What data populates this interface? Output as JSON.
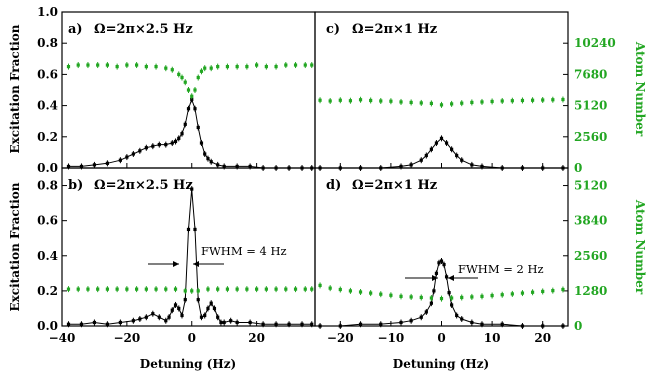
{
  "colors": {
    "excitation": "#000000",
    "atoms": "#22a622",
    "axis": "#000000"
  },
  "labels": {
    "ylabel_left": "Excitation Fraction",
    "ylabel_right": "Atom Number",
    "xlabel": "Detuning (Hz)"
  },
  "chart_data": [
    {
      "panel": "a",
      "type": "scatter",
      "label": "a)",
      "title": "Ω=2π×2.5 Hz",
      "xlim": [
        -40,
        38
      ],
      "ylim": [
        0,
        1.0
      ],
      "yticks": [
        "0.0",
        "0.2",
        "0.4",
        "0.6",
        "0.8",
        "1.0"
      ],
      "yticks_values": [
        0,
        0.2,
        0.4,
        0.6,
        0.8,
        1.0
      ],
      "series": [
        {
          "name": "excitation",
          "x": [
            -38,
            -34,
            -30,
            -26,
            -22,
            -20,
            -18,
            -16,
            -14,
            -12,
            -10,
            -8,
            -6,
            -5,
            -4,
            -3,
            -2,
            -1,
            0,
            1,
            2,
            3,
            4,
            5,
            6,
            8,
            10,
            14,
            18,
            22,
            26,
            30,
            34,
            37
          ],
          "y": [
            0.01,
            0.01,
            0.02,
            0.03,
            0.05,
            0.07,
            0.09,
            0.11,
            0.13,
            0.14,
            0.15,
            0.15,
            0.16,
            0.17,
            0.19,
            0.22,
            0.28,
            0.38,
            0.44,
            0.38,
            0.26,
            0.16,
            0.09,
            0.06,
            0.04,
            0.02,
            0.01,
            0.01,
            0.01,
            0.0,
            0.0,
            0.0,
            0.0,
            0.0
          ]
        },
        {
          "name": "atoms",
          "x": [
            -38,
            -35,
            -32,
            -29,
            -26,
            -23,
            -20,
            -17,
            -14,
            -11,
            -8,
            -6,
            -4,
            -3,
            -2,
            -1,
            0,
            1,
            2,
            3,
            4,
            6,
            8,
            11,
            14,
            17,
            20,
            23,
            26,
            29,
            32,
            35,
            37
          ],
          "y": [
            0.65,
            0.66,
            0.66,
            0.66,
            0.66,
            0.65,
            0.66,
            0.66,
            0.65,
            0.65,
            0.64,
            0.63,
            0.6,
            0.58,
            0.55,
            0.5,
            0.46,
            0.5,
            0.58,
            0.62,
            0.64,
            0.64,
            0.65,
            0.65,
            0.65,
            0.65,
            0.66,
            0.65,
            0.65,
            0.66,
            0.66,
            0.66,
            0.66
          ]
        }
      ]
    },
    {
      "panel": "b",
      "type": "scatter",
      "label": "b)",
      "title": "Ω=2π×2.5 Hz",
      "xlim": [
        -40,
        38
      ],
      "ylim": [
        0,
        0.9
      ],
      "yticks": [
        "0.0",
        "0.2",
        "0.4",
        "0.6",
        "0.8"
      ],
      "yticks_values": [
        0,
        0.2,
        0.4,
        0.6,
        0.8
      ],
      "xticks": [
        "−40",
        "−20",
        "0",
        "20"
      ],
      "xticks_values": [
        -40,
        -20,
        0,
        20
      ],
      "annotation": "FWHM = 4 Hz",
      "series": [
        {
          "name": "excitation",
          "x": [
            -38,
            -34,
            -30,
            -26,
            -22,
            -18,
            -16,
            -14,
            -12,
            -10,
            -8,
            -7,
            -6,
            -5,
            -4,
            -3,
            -2,
            -1,
            0,
            1,
            2,
            3,
            4,
            5,
            6,
            7,
            8,
            9,
            10,
            12,
            14,
            18,
            22,
            26,
            30,
            34,
            37
          ],
          "y": [
            0.01,
            0.01,
            0.02,
            0.01,
            0.02,
            0.03,
            0.04,
            0.05,
            0.07,
            0.05,
            0.03,
            0.05,
            0.09,
            0.12,
            0.1,
            0.06,
            0.15,
            0.55,
            0.78,
            0.55,
            0.15,
            0.05,
            0.06,
            0.1,
            0.13,
            0.1,
            0.05,
            0.02,
            0.02,
            0.03,
            0.02,
            0.02,
            0.01,
            0.01,
            0.01,
            0.01,
            0.01
          ]
        },
        {
          "name": "atoms",
          "x": [
            -38,
            -35,
            -32,
            -29,
            -26,
            -23,
            -20,
            -17,
            -14,
            -11,
            -8,
            -5,
            -2,
            0,
            2,
            5,
            8,
            11,
            14,
            17,
            20,
            23,
            26,
            29,
            32,
            35,
            37
          ],
          "y": [
            0.21,
            0.21,
            0.21,
            0.21,
            0.21,
            0.21,
            0.21,
            0.21,
            0.21,
            0.21,
            0.21,
            0.21,
            0.2,
            0.2,
            0.2,
            0.21,
            0.21,
            0.21,
            0.21,
            0.21,
            0.21,
            0.21,
            0.21,
            0.21,
            0.21,
            0.21,
            0.21
          ]
        }
      ]
    },
    {
      "panel": "c",
      "type": "scatter",
      "label": "c)",
      "title": "Ω=2π×1 Hz",
      "xlim": [
        -25,
        25
      ],
      "ylim_right": [
        0,
        12800
      ],
      "yticks_right": [
        "0",
        "2560",
        "5120",
        "7680",
        "10240"
      ],
      "yticks_right_values": [
        0,
        2560,
        5120,
        7680,
        10240
      ],
      "series": [
        {
          "name": "excitation",
          "x": [
            -24,
            -20,
            -16,
            -12,
            -8,
            -6,
            -4,
            -3,
            -2,
            -1,
            0,
            1,
            2,
            3,
            4,
            6,
            8,
            12,
            16,
            20,
            24
          ],
          "y": [
            0.0,
            0.0,
            0.0,
            0.0,
            0.01,
            0.02,
            0.05,
            0.08,
            0.12,
            0.16,
            0.19,
            0.16,
            0.12,
            0.08,
            0.05,
            0.02,
            0.01,
            0.0,
            0.0,
            0.0,
            0.0
          ]
        },
        {
          "name": "atoms",
          "x": [
            -24,
            -22,
            -20,
            -18,
            -16,
            -14,
            -12,
            -10,
            -8,
            -6,
            -4,
            -2,
            0,
            2,
            4,
            6,
            8,
            10,
            12,
            14,
            16,
            18,
            20,
            22,
            24
          ],
          "y": [
            5560,
            5500,
            5560,
            5520,
            5600,
            5540,
            5500,
            5480,
            5420,
            5380,
            5340,
            5300,
            5180,
            5260,
            5320,
            5380,
            5420,
            5460,
            5500,
            5520,
            5540,
            5560,
            5580,
            5600,
            5620
          ]
        }
      ]
    },
    {
      "panel": "d",
      "type": "scatter",
      "label": "d)",
      "title": "Ω=2π×1 Hz",
      "xlim": [
        -25,
        25
      ],
      "xticks": [
        "−20",
        "−10",
        "0",
        "10",
        "20"
      ],
      "xticks_values": [
        -20,
        -10,
        0,
        10,
        20
      ],
      "ylim_right": [
        0,
        5760
      ],
      "yticks_right": [
        "0",
        "1280",
        "2560",
        "3840",
        "5120"
      ],
      "yticks_right_values": [
        0,
        1280,
        2560,
        3840,
        5120
      ],
      "annotation": "FWHM = 2 Hz",
      "series": [
        {
          "name": "excitation",
          "x": [
            -24,
            -20,
            -16,
            -12,
            -8,
            -6,
            -4,
            -3,
            -2,
            -1.5,
            -1,
            -0.5,
            0,
            0.5,
            1,
            1.5,
            2,
            3,
            4,
            6,
            8,
            12,
            16,
            20,
            24
          ],
          "y": [
            0.0,
            0.0,
            0.01,
            0.01,
            0.02,
            0.03,
            0.05,
            0.08,
            0.13,
            0.2,
            0.3,
            0.36,
            0.37,
            0.35,
            0.28,
            0.19,
            0.12,
            0.06,
            0.04,
            0.02,
            0.01,
            0.01,
            0.0,
            0.0,
            0.0
          ]
        },
        {
          "name": "atoms",
          "x": [
            -24,
            -22,
            -20,
            -18,
            -16,
            -14,
            -12,
            -10,
            -8,
            -6,
            -4,
            -2,
            0,
            2,
            4,
            6,
            8,
            10,
            12,
            14,
            16,
            18,
            20,
            22,
            24
          ],
          "y": [
            1480,
            1380,
            1330,
            1280,
            1240,
            1200,
            1160,
            1120,
            1080,
            1060,
            1040,
            1020,
            1000,
            1020,
            1040,
            1060,
            1080,
            1110,
            1140,
            1170,
            1200,
            1230,
            1260,
            1290,
            1330
          ]
        }
      ]
    }
  ]
}
